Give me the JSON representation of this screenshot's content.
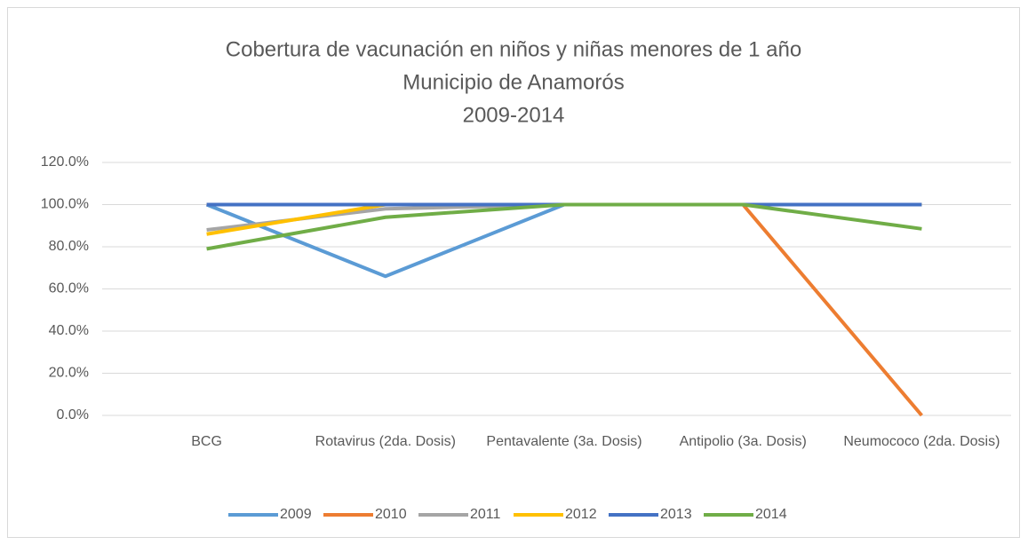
{
  "chart_data": {
    "type": "line",
    "title": [
      "Cobertura de vacunación en niños y niñas menores de 1 año",
      "Municipio de Anamorós",
      "2009-2014"
    ],
    "categories": [
      "BCG",
      "Rotavirus (2da. Dosis)",
      "Pentavalente (3a. Dosis)",
      "Antipolio (3a. Dosis)",
      "Neumococo (2da. Dosis)"
    ],
    "series": [
      {
        "name": "2009",
        "color": "#5b9bd5",
        "values": [
          100,
          66,
          100,
          100,
          100
        ]
      },
      {
        "name": "2010",
        "color": "#ed7d31",
        "values": [
          100,
          100,
          100,
          100,
          0
        ]
      },
      {
        "name": "2011",
        "color": "#a5a5a5",
        "values": [
          88,
          98,
          100,
          100,
          100
        ]
      },
      {
        "name": "2012",
        "color": "#ffc000",
        "values": [
          86,
          100,
          100,
          100,
          100
        ]
      },
      {
        "name": "2013",
        "color": "#4472c4",
        "values": [
          100,
          100,
          100,
          100,
          100
        ]
      },
      {
        "name": "2014",
        "color": "#70ad47",
        "values": [
          79,
          94,
          100,
          100,
          88.5
        ]
      }
    ],
    "ylim": [
      0,
      120
    ],
    "yticks": [
      {
        "value": 0,
        "label": "0.0%"
      },
      {
        "value": 20,
        "label": "20.0%"
      },
      {
        "value": 40,
        "label": "40.0%"
      },
      {
        "value": 60,
        "label": "60.0%"
      },
      {
        "value": 80,
        "label": "80.0%"
      },
      {
        "value": 100,
        "label": "100.0%"
      },
      {
        "value": 120,
        "label": "120.0%"
      }
    ],
    "grid": true,
    "legend": "bottom"
  }
}
